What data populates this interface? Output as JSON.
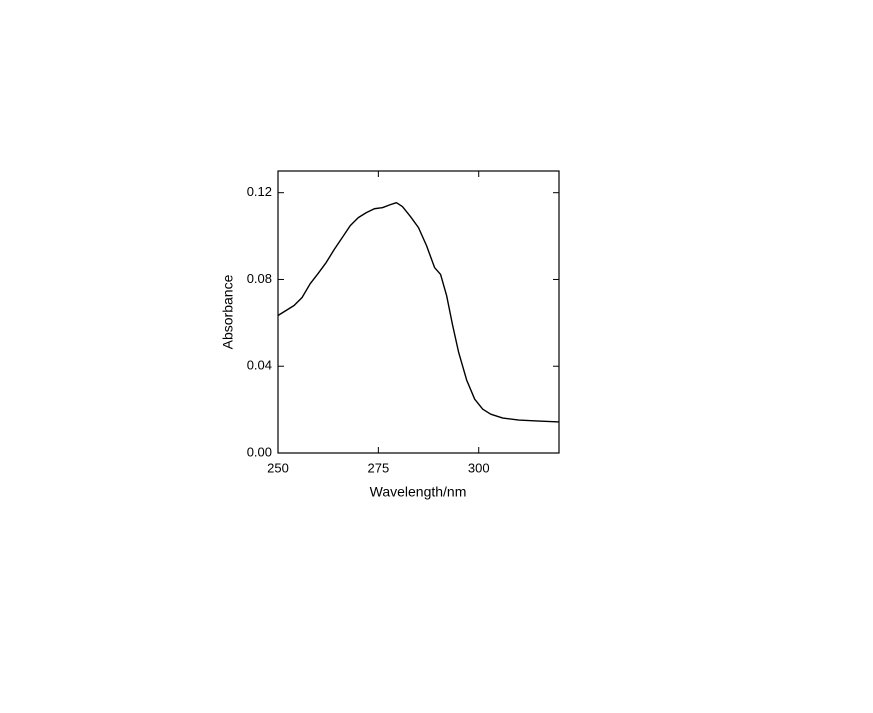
{
  "chart_data": {
    "type": "line",
    "x_label": "Wavelength/nm",
    "y_label": "Absorbance",
    "x": [
      250,
      252,
      254,
      256,
      258,
      260,
      262,
      264,
      266,
      268,
      270,
      272,
      274,
      276,
      278,
      279.5,
      281,
      283,
      285,
      287,
      289,
      290.5,
      292,
      293.5,
      295,
      297,
      299,
      301,
      303,
      306,
      310,
      315,
      320
    ],
    "series": [
      {
        "color": "#000000",
        "values": [
          0.0634,
          0.0657,
          0.068,
          0.0717,
          0.078,
          0.0828,
          0.0878,
          0.0938,
          0.0993,
          0.1048,
          0.1085,
          0.1108,
          0.1126,
          0.1131,
          0.1145,
          0.1154,
          0.1136,
          0.109,
          0.1039,
          0.0956,
          0.0855,
          0.0823,
          0.0726,
          0.0589,
          0.0464,
          0.0336,
          0.0248,
          0.0202,
          0.0179,
          0.0161,
          0.0152,
          0.0147,
          0.0143
        ]
      }
    ],
    "xlim": [
      250,
      320
    ],
    "xticks": [
      250,
      275,
      300
    ],
    "ylim": [
      0,
      0.13
    ],
    "yticks": [
      {
        "value": 0,
        "label": "0.00"
      },
      0.04,
      0.08,
      0.12
    ]
  }
}
